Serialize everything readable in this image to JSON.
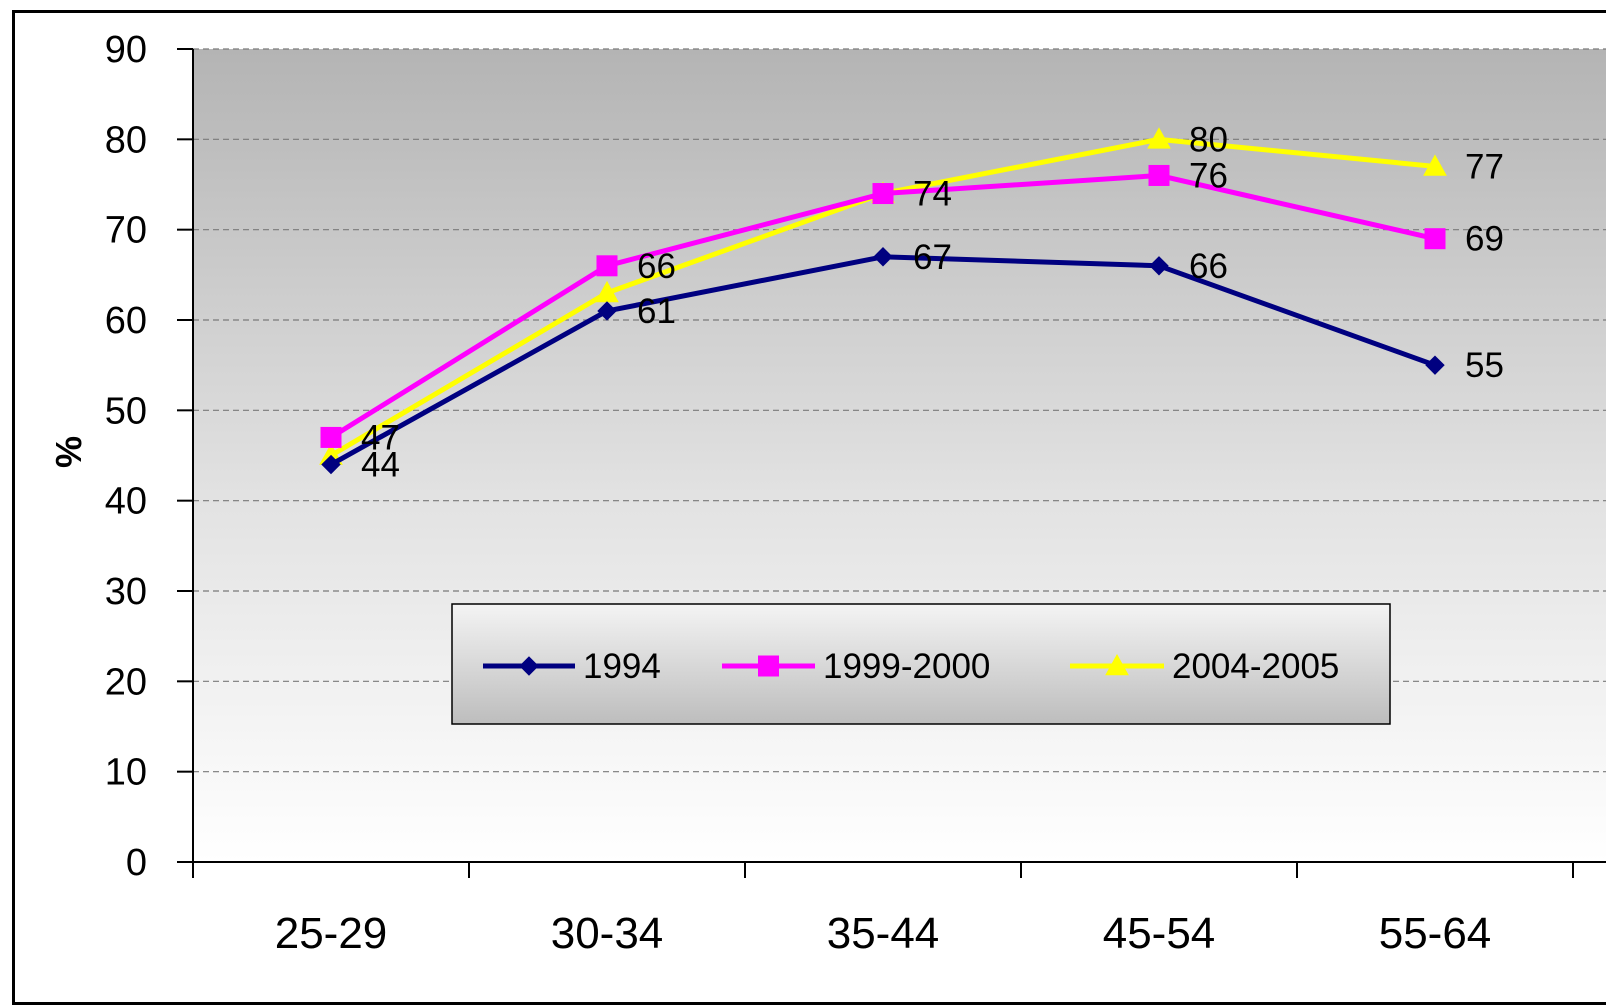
{
  "chart_data": {
    "type": "line",
    "title": "",
    "xlabel": "",
    "ylabel": "%",
    "ylim": [
      0,
      90
    ],
    "yticks": [
      0,
      10,
      20,
      30,
      40,
      50,
      60,
      70,
      80,
      90
    ],
    "grid": "horizontal-dashed",
    "categories": [
      "25-29",
      "30-34",
      "35-44",
      "45-54",
      "55-64"
    ],
    "legend_position": "bottom-center-inside",
    "series": [
      {
        "name": "1994",
        "values": [
          44,
          61,
          67,
          66,
          55
        ],
        "color": "#000080",
        "marker": "diamond",
        "labels": [
          "44",
          "61",
          "67",
          "66",
          "55"
        ]
      },
      {
        "name": "1999-2000",
        "values": [
          47,
          66,
          74,
          76,
          69
        ],
        "color": "#FF00FF",
        "marker": "square",
        "labels": [
          "47",
          "66",
          "",
          "76",
          "69"
        ]
      },
      {
        "name": "2004-2005",
        "values": [
          45,
          63,
          74,
          80,
          77
        ],
        "color": "#FFFF00",
        "marker": "triangle",
        "labels": [
          "",
          "",
          "74",
          "80",
          "77"
        ]
      }
    ]
  }
}
